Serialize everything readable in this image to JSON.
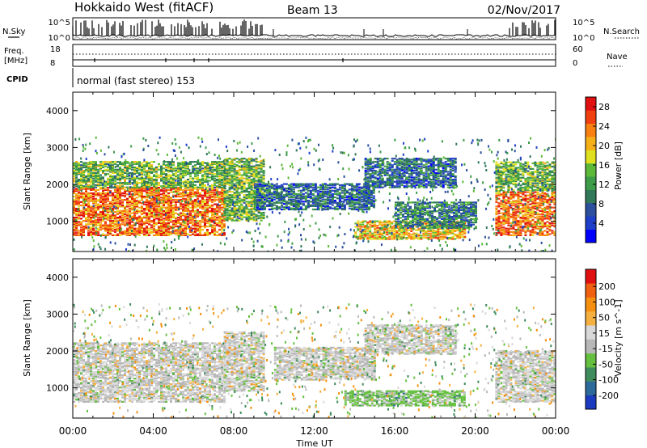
{
  "header": {
    "station": "Hokkaido West (fitACF)",
    "beam": "Beam 13",
    "date": "02/Nov/2017"
  },
  "panels": {
    "nsky": {
      "label": "N.Sky",
      "left_ticks": [
        "10^5",
        "10^0"
      ],
      "right_label": "N.Search",
      "right_ticks": [
        "10^5",
        "10^0"
      ]
    },
    "freq": {
      "label_line1": "Freq.",
      "label_line2": "[MHz]",
      "left_ticks": [
        "18",
        "8"
      ],
      "right_label": "Nave",
      "right_ticks": [
        "60",
        "0"
      ]
    },
    "cpid": {
      "label": "CPID",
      "text": "normal (fast stereo) 153"
    }
  },
  "chart_data": [
    {
      "type": "heatmap",
      "title": "",
      "xlabel": "Time UT",
      "ylabel": "Slant Range [km]",
      "xlim": [
        "00:00",
        "24:00"
      ],
      "ylim": [
        180,
        4500
      ],
      "x_ticks": [
        "00:00",
        "04:00",
        "08:00",
        "12:00",
        "16:00",
        "20:00",
        "00:00"
      ],
      "y_ticks": [
        1000,
        2000,
        3000,
        4000
      ],
      "colorbar": {
        "label": "Power [dB]",
        "ticks": [
          4,
          8,
          12,
          16,
          20,
          24,
          28
        ],
        "range": [
          0,
          30
        ],
        "colors": [
          "#0000ff",
          "#1e40c8",
          "#2c4f9e",
          "#307858",
          "#3c9c48",
          "#5cb838",
          "#dfe020",
          "#f5b018",
          "#f88010",
          "#f04010",
          "#e01010"
        ]
      },
      "regions": [
        {
          "t0": 0.0,
          "t1": 7.5,
          "r0": 600,
          "r1": 1900,
          "level": 24
        },
        {
          "t0": 0.0,
          "t1": 7.5,
          "r0": 1900,
          "r1": 2600,
          "level": 14
        },
        {
          "t0": 7.5,
          "t1": 9.5,
          "r0": 1000,
          "r1": 2700,
          "level": 14
        },
        {
          "t0": 9.0,
          "t1": 15.0,
          "r0": 1300,
          "r1": 2000,
          "level": 8
        },
        {
          "t0": 14.0,
          "t1": 19.5,
          "r0": 500,
          "r1": 1000,
          "level": 20
        },
        {
          "t0": 14.5,
          "t1": 19.0,
          "r0": 1900,
          "r1": 2700,
          "level": 8
        },
        {
          "t0": 16.0,
          "t1": 20.0,
          "r0": 800,
          "r1": 1500,
          "level": 10
        },
        {
          "t0": 21.0,
          "t1": 24.0,
          "r0": 600,
          "r1": 1800,
          "level": 24
        },
        {
          "t0": 21.0,
          "t1": 24.0,
          "r0": 1800,
          "r1": 2600,
          "level": 14
        }
      ]
    },
    {
      "type": "heatmap",
      "title": "",
      "xlabel": "Time UT",
      "ylabel": "Slant Range [km]",
      "xlim": [
        "00:00",
        "24:00"
      ],
      "ylim": [
        180,
        4500
      ],
      "x_ticks": [
        "00:00",
        "04:00",
        "08:00",
        "12:00",
        "16:00",
        "20:00",
        "00:00"
      ],
      "y_ticks": [
        1000,
        2000,
        3000,
        4000
      ],
      "colorbar": {
        "label": "Velocity [m s^-1]",
        "ticks": [
          200,
          100,
          50,
          15,
          -15,
          -50,
          -100,
          -200
        ],
        "range": [
          -250,
          250
        ],
        "colors": [
          "#1c3cc0",
          "#2d6a9c",
          "#3f8c5c",
          "#66c040",
          "#b8b8b8",
          "#d8d8d8",
          "#f5b040",
          "#f59010",
          "#f06010",
          "#e01010"
        ]
      },
      "regions": [
        {
          "t0": 0.0,
          "t1": 7.5,
          "r0": 600,
          "r1": 2200,
          "level": 0
        },
        {
          "t0": 7.5,
          "t1": 9.5,
          "r0": 900,
          "r1": 2500,
          "level": 0
        },
        {
          "t0": 10.0,
          "t1": 15.0,
          "r0": 1200,
          "r1": 2100,
          "level": 0
        },
        {
          "t0": 13.5,
          "t1": 19.5,
          "r0": 500,
          "r1": 900,
          "level": -60
        },
        {
          "t0": 14.5,
          "t1": 19.0,
          "r0": 1900,
          "r1": 2700,
          "level": 0
        },
        {
          "t0": 21.0,
          "t1": 24.0,
          "r0": 600,
          "r1": 2000,
          "level": 0
        }
      ]
    }
  ]
}
